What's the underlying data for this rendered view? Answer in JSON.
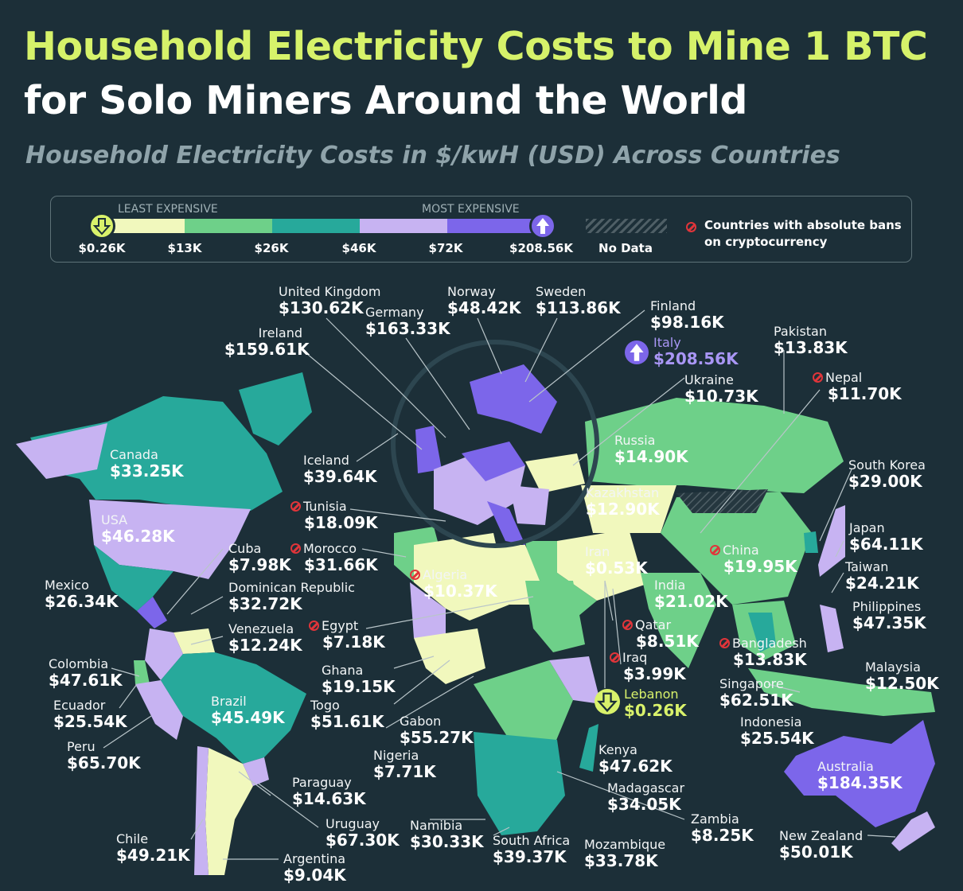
{
  "title_line1": "Household Electricity Costs to Mine 1 BTC",
  "title_line2": "for Solo Miners Around the World",
  "subtitle": "Household Electricity Costs in $/kwH (USD) Across Countries",
  "legend": {
    "least_label": "LEAST EXPENSIVE",
    "most_label": "MOST EXPENSIVE",
    "ticks": [
      "$0.26K",
      "$13K",
      "$26K",
      "$46K",
      "$72K",
      "$208.56K"
    ],
    "no_data": "No Data",
    "ban_note": "Countries with absolute bans on cryptocurrency",
    "colors": [
      "#f1f8bd",
      "#6ed089",
      "#27a99b",
      "#c7b3f2",
      "#7c66ea"
    ],
    "nodata_color": "#4f5f66",
    "min_icon": "arrow-down-icon",
    "max_icon": "arrow-up-icon",
    "ban_icon": "ban-icon"
  },
  "countries": [
    {
      "name": "United Kingdom",
      "value": "$130.62K"
    },
    {
      "name": "Norway",
      "value": "$48.42K"
    },
    {
      "name": "Sweden",
      "value": "$113.86K"
    },
    {
      "name": "Germany",
      "value": "$163.33K"
    },
    {
      "name": "Finland",
      "value": "$98.16K"
    },
    {
      "name": "Ireland",
      "value": "$159.61K"
    },
    {
      "name": "Italy",
      "value": "$208.56K"
    },
    {
      "name": "Pakistan",
      "value": "$13.83K"
    },
    {
      "name": "Ukraine",
      "value": "$10.73K"
    },
    {
      "name": "Nepal",
      "value": "$11.70K",
      "ban": true
    },
    {
      "name": "Russia",
      "value": "$14.90K"
    },
    {
      "name": "Canada",
      "value": "$33.25K"
    },
    {
      "name": "Iceland",
      "value": "$39.64K"
    },
    {
      "name": "South Korea",
      "value": "$29.00K"
    },
    {
      "name": "Kazakhstan",
      "value": "$12.90K"
    },
    {
      "name": "Tunisia",
      "value": "$18.09K",
      "ban": true
    },
    {
      "name": "USA",
      "value": "$46.28K"
    },
    {
      "name": "Japan",
      "value": "$64.11K"
    },
    {
      "name": "Cuba",
      "value": "$7.98K"
    },
    {
      "name": "Morocco",
      "value": "$31.66K",
      "ban": true
    },
    {
      "name": "Iran",
      "value": "$0.53K"
    },
    {
      "name": "China",
      "value": "$19.95K",
      "ban": true
    },
    {
      "name": "Taiwan",
      "value": "$24.21K"
    },
    {
      "name": "Algeria",
      "value": "$10.37K",
      "ban": true
    },
    {
      "name": "Mexico",
      "value": "$26.34K"
    },
    {
      "name": "Dominican Republic",
      "value": "$32.72K"
    },
    {
      "name": "India",
      "value": "$21.02K"
    },
    {
      "name": "Philippines",
      "value": "$47.35K"
    },
    {
      "name": "Venezuela",
      "value": "$12.24K"
    },
    {
      "name": "Egypt",
      "value": "$7.18K",
      "ban": true
    },
    {
      "name": "Qatar",
      "value": "$8.51K",
      "ban": true
    },
    {
      "name": "Bangladesh",
      "value": "$13.83K",
      "ban": true
    },
    {
      "name": "Colombia",
      "value": "$47.61K"
    },
    {
      "name": "Ghana",
      "value": "$19.15K"
    },
    {
      "name": "Iraq",
      "value": "$3.99K",
      "ban": true
    },
    {
      "name": "Malaysia",
      "value": "$12.50K"
    },
    {
      "name": "Ecuador",
      "value": "$25.54K"
    },
    {
      "name": "Brazil",
      "value": "$45.49K"
    },
    {
      "name": "Togo",
      "value": "$51.61K"
    },
    {
      "name": "Singapore",
      "value": "$62.51K"
    },
    {
      "name": "Lebanon",
      "value": "$0.26K"
    },
    {
      "name": "Gabon",
      "value": "$55.27K"
    },
    {
      "name": "Indonesia",
      "value": "$25.54K"
    },
    {
      "name": "Peru",
      "value": "$65.70K"
    },
    {
      "name": "Nigeria",
      "value": "$7.71K"
    },
    {
      "name": "Kenya",
      "value": "$47.62K"
    },
    {
      "name": "Australia",
      "value": "$184.35K"
    },
    {
      "name": "Paraguay",
      "value": "$14.63K"
    },
    {
      "name": "Madagascar",
      "value": "$34.05K"
    },
    {
      "name": "Uruguay",
      "value": "$67.30K"
    },
    {
      "name": "Namibia",
      "value": "$30.33K"
    },
    {
      "name": "Zambia",
      "value": "$8.25K"
    },
    {
      "name": "Chile",
      "value": "$49.21K"
    },
    {
      "name": "South Africa",
      "value": "$39.37K"
    },
    {
      "name": "Mozambique",
      "value": "$33.78K"
    },
    {
      "name": "New Zealand",
      "value": "$50.01K"
    },
    {
      "name": "Argentina",
      "value": "$9.04K"
    }
  ]
}
